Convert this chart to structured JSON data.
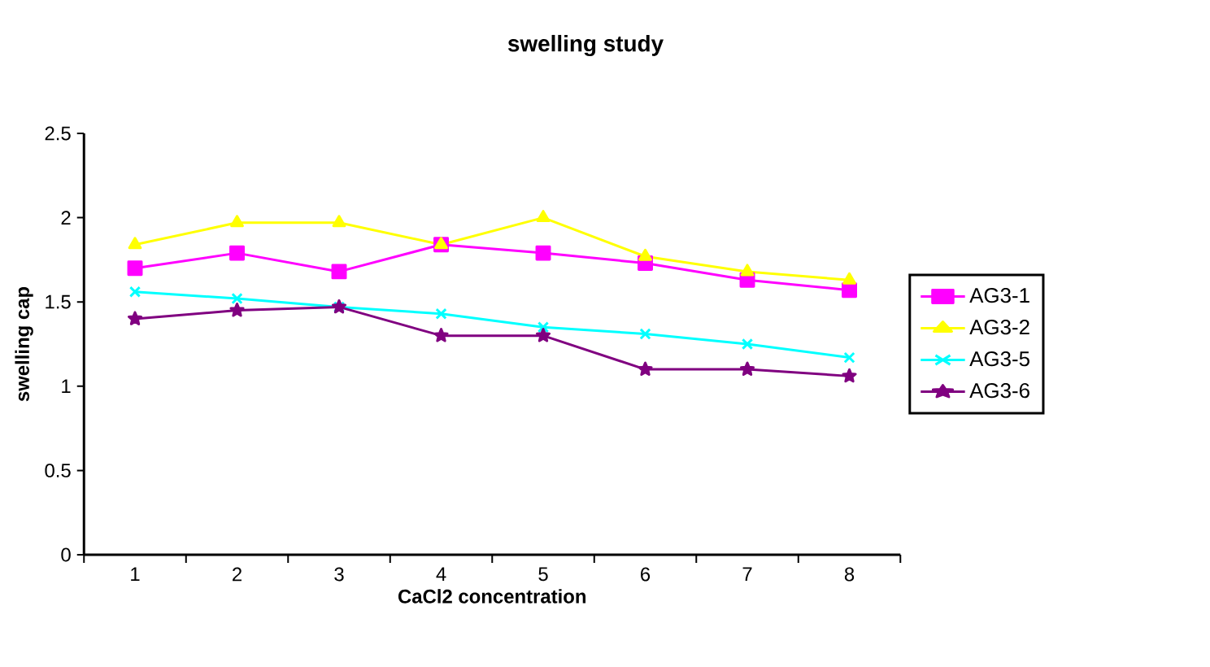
{
  "chart_data": {
    "type": "line",
    "title": "swelling study",
    "xlabel": "CaCl2 concentration",
    "ylabel": "swelling cap",
    "categories": [
      "1",
      "2",
      "3",
      "4",
      "5",
      "6",
      "7",
      "8"
    ],
    "series": [
      {
        "name": "AG3-1",
        "color": "#ff00ff",
        "marker": "square",
        "values": [
          1.7,
          1.79,
          1.68,
          1.84,
          1.79,
          1.73,
          1.63,
          1.57
        ]
      },
      {
        "name": "AG3-2",
        "color": "#ffff00",
        "marker": "triangle",
        "values": [
          1.84,
          1.97,
          1.97,
          1.84,
          2.0,
          1.77,
          1.68,
          1.63
        ]
      },
      {
        "name": "AG3-5",
        "color": "#00ffff",
        "marker": "cross",
        "values": [
          1.56,
          1.52,
          1.47,
          1.43,
          1.35,
          1.31,
          1.25,
          1.17
        ]
      },
      {
        "name": "AG3-6",
        "color": "#800080",
        "marker": "star",
        "values": [
          1.4,
          1.45,
          1.47,
          1.3,
          1.3,
          1.1,
          1.1,
          1.06
        ]
      }
    ],
    "ylim": [
      0,
      2.5
    ],
    "yticks": [
      0,
      0.5,
      1,
      1.5,
      2,
      2.5
    ],
    "legend": "right",
    "grid": false
  }
}
